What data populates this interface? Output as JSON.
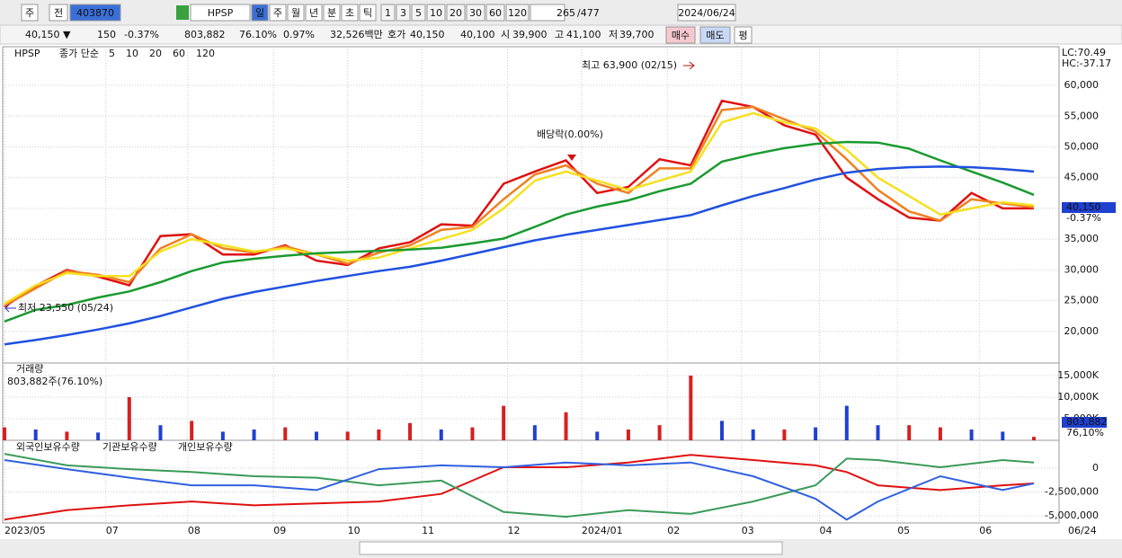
{
  "toolbar": {
    "period": "주",
    "prev": "전",
    "code": "403870",
    "name": "HPSP",
    "intervals": [
      "일",
      "주",
      "월",
      "년",
      "분",
      "초",
      "틱"
    ],
    "multipliers": [
      "1",
      "3",
      "5",
      "10",
      "20",
      "30",
      "60",
      "120"
    ],
    "count": "265",
    "total": "/477",
    "date": "2024/06/24"
  },
  "info_bar": {
    "price": "40,150 ▼",
    "change": "150",
    "change_pct": "-0.37%",
    "volume": "803,882",
    "volume_pct": "76.10%",
    "turnover": "0.97%",
    "amount": "32,526백만",
    "quote_label": "호가",
    "ask": "40,150",
    "bid": "40,100",
    "open_label": "시",
    "open": "39,900",
    "high_label": "고",
    "high": "41,100",
    "low_label": "저",
    "low": "39,700",
    "buy": "매수",
    "sell": "매도",
    "avg": "평"
  },
  "chart_data": [
    {
      "type": "line",
      "ticker": "HPSP",
      "legend_title": "종가 단순",
      "x": [
        0,
        8,
        16,
        24,
        32,
        40,
        48,
        56,
        64,
        72,
        80,
        88,
        96,
        104,
        112,
        120,
        128,
        136,
        144,
        152,
        160,
        168,
        176,
        184,
        192,
        200,
        208,
        216,
        224,
        232,
        240,
        248,
        256,
        264
      ],
      "xlim": [
        0,
        264
      ],
      "xticks": [
        {
          "value": 0,
          "label": "2023/05"
        },
        {
          "value": 26,
          "label": "07"
        },
        {
          "value": 47,
          "label": "08"
        },
        {
          "value": 69,
          "label": "09"
        },
        {
          "value": 88,
          "label": "10"
        },
        {
          "value": 107,
          "label": "11"
        },
        {
          "value": 129,
          "label": "12"
        },
        {
          "value": 148,
          "label": "2024/01"
        },
        {
          "value": 170,
          "label": "02"
        },
        {
          "value": 189,
          "label": "03"
        },
        {
          "value": 209,
          "label": "04"
        },
        {
          "value": 229,
          "label": "05"
        },
        {
          "value": 250,
          "label": "06"
        }
      ],
      "end_label": "06/24",
      "ylim": [
        15000,
        66000
      ],
      "yticks": [
        {
          "value": 20000,
          "label": "20,000"
        },
        {
          "value": 25000,
          "label": "25,000"
        },
        {
          "value": 30000,
          "label": "30,000"
        },
        {
          "value": 35000,
          "label": "35,000"
        },
        {
          "value": 40000,
          "label": "40,000"
        },
        {
          "value": 45000,
          "label": "45,000"
        },
        {
          "value": 50000,
          "label": "50,000"
        },
        {
          "value": 55000,
          "label": "55,000"
        },
        {
          "value": 60000,
          "label": "60,000"
        }
      ],
      "grid": true,
      "series": [
        {
          "name": "5",
          "color": "#e01010",
          "values": [
            24000,
            27400,
            30000,
            28900,
            27500,
            35500,
            35800,
            32500,
            32500,
            34000,
            31500,
            30800,
            33500,
            34500,
            37400,
            37200,
            44000,
            46000,
            47800,
            42500,
            43500,
            48000,
            47000,
            57500,
            56500,
            53500,
            52000,
            45000,
            41500,
            38500,
            38000,
            42500,
            40000,
            40000
          ]
        },
        {
          "name": "10",
          "color": "#f08020",
          "values": [
            24200,
            27000,
            29800,
            29200,
            28000,
            33500,
            35800,
            33500,
            32800,
            33800,
            32500,
            31000,
            32800,
            34000,
            36500,
            37000,
            41500,
            45500,
            47000,
            44000,
            42500,
            46500,
            46500,
            56000,
            56500,
            54500,
            52500,
            48000,
            43000,
            39500,
            38000,
            41500,
            40800,
            40200
          ]
        },
        {
          "name": "20",
          "color": "#f5e020",
          "values": [
            24500,
            27500,
            29500,
            29000,
            29000,
            33000,
            35000,
            34000,
            33000,
            33500,
            32500,
            31500,
            32000,
            33500,
            35000,
            36500,
            40000,
            44500,
            46000,
            44500,
            43000,
            44500,
            46000,
            54000,
            55500,
            54000,
            53000,
            49500,
            45000,
            42000,
            39000,
            40000,
            41000,
            40500
          ]
        },
        {
          "name": "60",
          "color": "#1a9a30",
          "values": [
            21600,
            23500,
            24300,
            25500,
            26500,
            28000,
            29800,
            31200,
            31800,
            32300,
            32700,
            32900,
            33100,
            33300,
            33600,
            34300,
            35100,
            37000,
            39000,
            40300,
            41300,
            42800,
            44000,
            47600,
            48800,
            49800,
            50500,
            50800,
            50700,
            49700,
            47800,
            46000,
            44200,
            42200
          ]
        },
        {
          "name": "120",
          "color": "#2050e0",
          "values": [
            17900,
            18600,
            19400,
            20300,
            21300,
            22500,
            23900,
            25300,
            26400,
            27300,
            28200,
            29000,
            29800,
            30500,
            31500,
            32600,
            33700,
            34800,
            35700,
            36500,
            37300,
            38100,
            38900,
            40500,
            42000,
            43300,
            44700,
            45800,
            46400,
            46700,
            46800,
            46700,
            46400,
            46000
          ]
        }
      ],
      "annotations": [
        "최고 63,900 (02/15)",
        "최저 23,550 (05/24)",
        "배당락(0.00%)"
      ],
      "lc": "LC:70.49",
      "hc": "HC:-37.17",
      "current_label": "40,150",
      "current_change": "-0.37%"
    },
    {
      "type": "bar",
      "title": "거래량",
      "subtitle": "803,882주(76.10%)",
      "x": [
        0,
        8,
        16,
        24,
        32,
        40,
        48,
        56,
        64,
        72,
        80,
        88,
        96,
        104,
        112,
        120,
        128,
        136,
        144,
        152,
        160,
        168,
        176,
        184,
        192,
        200,
        208,
        216,
        224,
        232,
        240,
        248,
        256,
        264
      ],
      "values": [
        3000,
        2500,
        2000,
        1800,
        10000,
        3500,
        4500,
        2000,
        2500,
        3000,
        2000,
        2000,
        2500,
        4000,
        2500,
        3000,
        8000,
        3500,
        6500,
        2000,
        2500,
        3500,
        15000,
        4500,
        2500,
        2500,
        3000,
        8000,
        3500,
        3500,
        3000,
        2500,
        2000,
        803.882
      ],
      "colors": [
        "#d62020",
        "#2040d0",
        "#d62020",
        "#2040d0",
        "#d62020",
        "#2040d0",
        "#d62020",
        "#2040d0",
        "#2040d0",
        "#d62020",
        "#2040d0",
        "#d62020",
        "#d62020",
        "#d62020",
        "#2040d0",
        "#d62020",
        "#d62020",
        "#2040d0",
        "#d62020",
        "#2040d0",
        "#d62020",
        "#d62020",
        "#d62020",
        "#2040d0",
        "#2040d0",
        "#d62020",
        "#2040d0",
        "#2040d0",
        "#2040d0",
        "#d62020",
        "#d62020",
        "#2040d0",
        "#2040d0",
        "#d62020"
      ],
      "xlim": [
        0,
        264
      ],
      "ylim": [
        0,
        17500
      ],
      "yticks": [
        {
          "value": 5000,
          "label": "5,000K"
        },
        {
          "value": 10000,
          "label": "10,000K"
        },
        {
          "value": 15000,
          "label": "15,000K"
        }
      ],
      "current_label": "803,882",
      "current_pct": "76,10%"
    },
    {
      "type": "line",
      "x": [
        0,
        16,
        32,
        48,
        64,
        80,
        96,
        112,
        128,
        144,
        160,
        176,
        192,
        208,
        216,
        224,
        240,
        256,
        264
      ],
      "xlim": [
        0,
        264
      ],
      "ylim": [
        -5750000,
        2550000
      ],
      "yticks": [
        0,
        {
          "value": -2500000,
          "label": "-2,500,000"
        },
        {
          "value": -5000000,
          "label": "-5,000,000"
        }
      ],
      "series": [
        {
          "name": "외국인보유수량",
          "color": "#e01010",
          "values": [
            -5400000,
            -4400000,
            -3900000,
            -3500000,
            -3900000,
            -3700000,
            -3500000,
            -2700000,
            100000,
            100000,
            600000,
            1400000,
            850000,
            300000,
            -400000,
            -1800000,
            -2300000,
            -1800000,
            -1600000
          ]
        },
        {
          "name": "기관보유수량",
          "color": "#3a9a5a",
          "values": [
            1500000,
            300000,
            -100000,
            -400000,
            -850000,
            -1000000,
            -1800000,
            -1300000,
            -4600000,
            -5100000,
            -4400000,
            -4800000,
            -3500000,
            -1800000,
            1000000,
            850000,
            100000,
            850000,
            600000
          ]
        },
        {
          "name": "개인보유수량",
          "color": "#3060e0",
          "values": [
            850000,
            -100000,
            -1000000,
            -1800000,
            -1800000,
            -2300000,
            -100000,
            300000,
            100000,
            600000,
            300000,
            600000,
            -850000,
            -3200000,
            -5400000,
            -3500000,
            -850000,
            -2300000,
            -1600000
          ]
        }
      ]
    }
  ]
}
